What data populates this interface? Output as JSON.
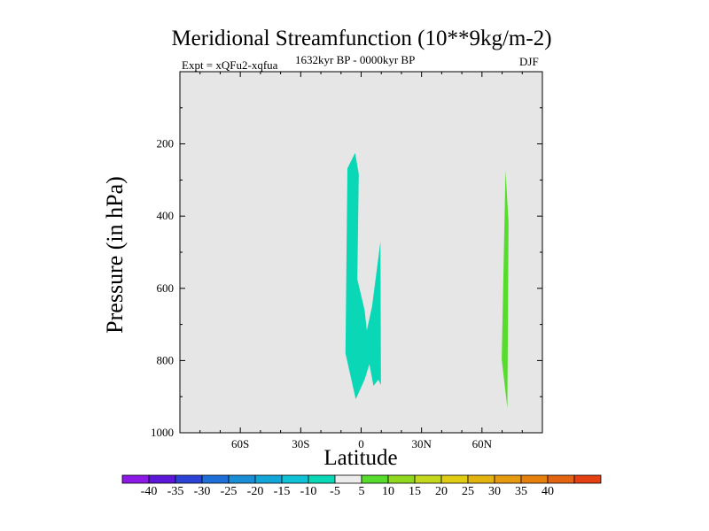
{
  "chart_data": {
    "type": "heatmap",
    "title": "Meridional Streamfunction (10**9kg/m-2)",
    "subtitle_left": "Expt = xQFu2-xqfua",
    "subtitle_center": "1632kyr BP - 0000kyr BP",
    "subtitle_right": "DJF",
    "xlabel": "Latitude",
    "ylabel": "Pressure (in hPa)",
    "xlim": [
      -90,
      90
    ],
    "ylim": [
      1000,
      0
    ],
    "x_ticks": [
      {
        "value": -60,
        "label": "60S"
      },
      {
        "value": -30,
        "label": "30S"
      },
      {
        "value": 0,
        "label": "0"
      },
      {
        "value": 30,
        "label": "30N"
      },
      {
        "value": 60,
        "label": "60N"
      }
    ],
    "y_ticks": [
      {
        "value": 200,
        "label": "200"
      },
      {
        "value": 400,
        "label": "400"
      },
      {
        "value": 600,
        "label": "600"
      },
      {
        "value": 800,
        "label": "800"
      },
      {
        "value": 1000,
        "label": "1000"
      }
    ],
    "background_color": "#e6e6e6",
    "regions": [
      {
        "name": "negative-region-equator",
        "level": "-10 to -5",
        "color": "#0ad7b5",
        "points": [
          [
            -7.8,
            780
          ],
          [
            -6.8,
            268
          ],
          [
            -3,
            225
          ],
          [
            -1.2,
            283
          ],
          [
            -1.9,
            575
          ],
          [
            1.7,
            660
          ],
          [
            2.8,
            717
          ],
          [
            5.4,
            650
          ],
          [
            9.6,
            470
          ],
          [
            9.8,
            868
          ],
          [
            8.6,
            853
          ],
          [
            6.1,
            870
          ],
          [
            4.1,
            810
          ],
          [
            3,
            830
          ],
          [
            1.7,
            853
          ],
          [
            -2.7,
            907
          ]
        ]
      },
      {
        "name": "positive-region-70n",
        "level": "5 to 10",
        "color": "#57dc2e",
        "points": [
          [
            69.8,
            797
          ],
          [
            71.7,
            273
          ],
          [
            73.2,
            418
          ],
          [
            72.6,
            932
          ]
        ]
      }
    ],
    "colorbar": {
      "colors": [
        "#8c19e6",
        "#5c17d8",
        "#2d43d6",
        "#1f6fd8",
        "#1b8fd6",
        "#13a6d8",
        "#0fc2d5",
        "#0ad7b5",
        "#ececec",
        "#57dc2e",
        "#90d81f",
        "#c3d71d",
        "#e0cc12",
        "#e3b30f",
        "#e69a0f",
        "#e6800c",
        "#e36512",
        "#e44012"
      ],
      "labels": [
        "-40",
        "-35",
        "-30",
        "-25",
        "-20",
        "-15",
        "-10",
        "-5",
        "5",
        "10",
        "15",
        "20",
        "25",
        "30",
        "35",
        "40"
      ]
    }
  }
}
